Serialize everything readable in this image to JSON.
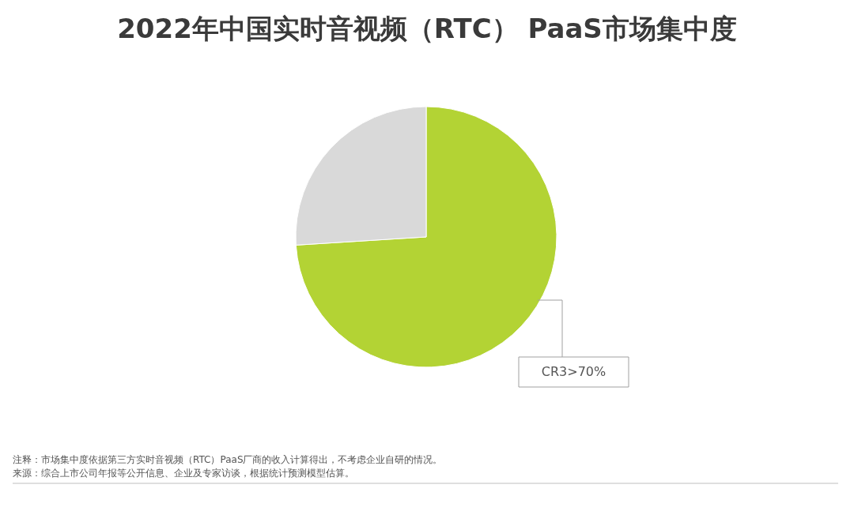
{
  "chart_data": {
    "type": "pie",
    "title": "2022年中国实时音视频（RTC） PaaS市场集中度",
    "categories": [
      null,
      null
    ],
    "values": [
      74,
      26
    ],
    "colors": [
      "#b3d334",
      "#d9d9d9"
    ],
    "annotations": [
      "CR3>70%",
      "注释：市场集中度依据第三方实时音视频（RTC）PaaS厂商的收入计算得出，不考虑企业自研的情况。",
      "来源：综合上市公司年报等公开信息、企业及专家访谈，根据统计预测模型估算。"
    ]
  }
}
